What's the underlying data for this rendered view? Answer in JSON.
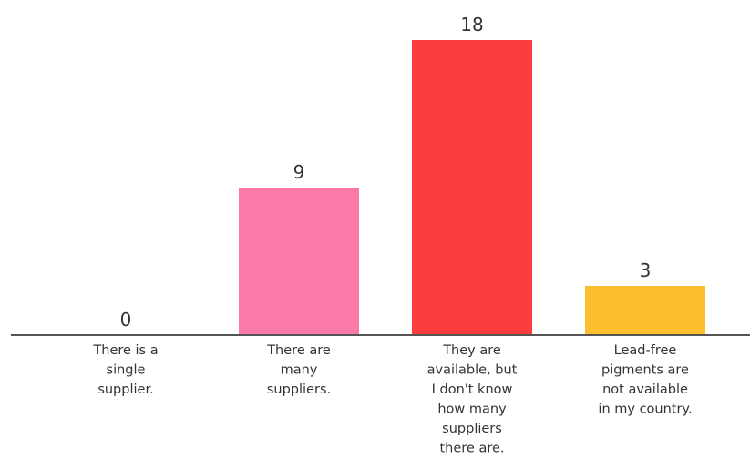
{
  "chart_data": {
    "type": "bar",
    "categories": [
      [
        "There is a",
        "single",
        "supplier."
      ],
      [
        "There are",
        "many",
        "suppliers."
      ],
      [
        "They are",
        "available, but",
        "I don't know",
        "how many",
        "suppliers",
        "there are."
      ],
      [
        "Lead-free",
        "pigments are",
        "not available",
        "in my country."
      ]
    ],
    "values": [
      0,
      9,
      18,
      3
    ],
    "colors": [
      "#fb7aa9",
      "#fb7aa9",
      "#fc3d3d",
      "#fbbf2e"
    ],
    "axis_color": "#555555",
    "title": "",
    "xlabel": "",
    "ylabel": "",
    "ylim": [
      0,
      18
    ]
  }
}
